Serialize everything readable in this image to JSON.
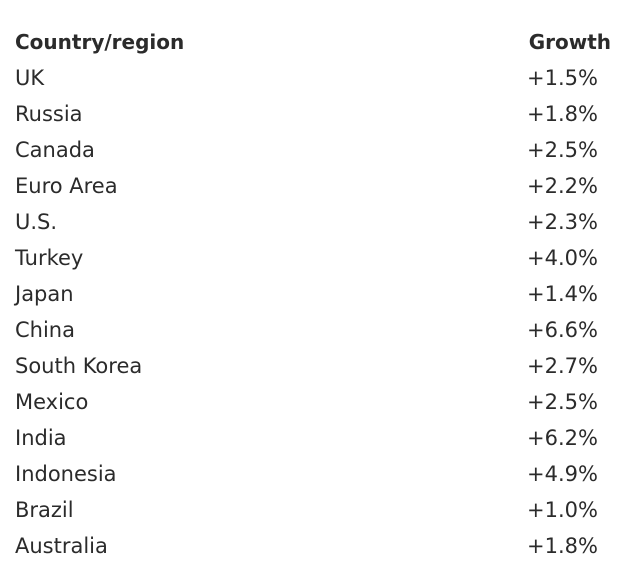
{
  "table": {
    "header": [
      "Country/region",
      "Growth"
    ],
    "rows": [
      [
        "UK",
        "+1.5%"
      ],
      [
        "Russia",
        "+1.8%"
      ],
      [
        "Canada",
        "+2.5%"
      ],
      [
        "Euro Area",
        "+2.2%"
      ],
      [
        "U.S.",
        "+2.3%"
      ],
      [
        "Turkey",
        "+4.0%"
      ],
      [
        "Japan",
        "+1.4%"
      ],
      [
        "China",
        "+6.6%"
      ],
      [
        "South Korea",
        "+2.7%"
      ],
      [
        "Mexico",
        "+2.5%"
      ],
      [
        "India",
        "+6.2%"
      ],
      [
        "Indonesia",
        "+4.9%"
      ],
      [
        "Brazil",
        "+1.0%"
      ],
      [
        "Australia",
        "+1.8%"
      ]
    ]
  }
}
